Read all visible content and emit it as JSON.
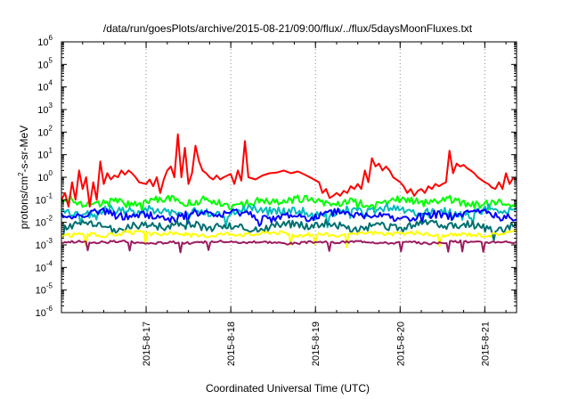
{
  "chart_data": {
    "type": "line",
    "title": "/data/run/goesPlots/archive/2015-08-21/09:00/flux/../flux/5daysMoonFluxes.txt",
    "xlabel": "Coordinated Universal Time (UTC)",
    "ylabel_parts": [
      "protons/cm",
      "2",
      "-s-sr-MeV"
    ],
    "yscale": "log",
    "ylim": [
      1e-06,
      1000000
    ],
    "y_ticks": [
      {
        "base": "10",
        "exp": "-6",
        "value": 1e-06
      },
      {
        "base": "10",
        "exp": "-5",
        "value": 1e-05
      },
      {
        "base": "10",
        "exp": "-4",
        "value": 0.0001
      },
      {
        "base": "10",
        "exp": "-3",
        "value": 0.001
      },
      {
        "base": "10",
        "exp": "-2",
        "value": 0.01
      },
      {
        "base": "10",
        "exp": "-1",
        "value": 0.1
      },
      {
        "base": "10",
        "exp": "0",
        "value": 1
      },
      {
        "base": "10",
        "exp": "1",
        "value": 10
      },
      {
        "base": "10",
        "exp": "2",
        "value": 100
      },
      {
        "base": "10",
        "exp": "3",
        "value": 1000
      },
      {
        "base": "10",
        "exp": "4",
        "value": 10000
      },
      {
        "base": "10",
        "exp": "5",
        "value": 100000
      },
      {
        "base": "10",
        "exp": "6",
        "value": 1000000
      }
    ],
    "xlim": [
      "2015-08-16 00:00",
      "2015-08-21 09:00"
    ],
    "x_ticks": [
      {
        "label": "2015-8-17",
        "value": "2015-08-17 00:00"
      },
      {
        "label": "2015-8-18",
        "value": "2015-08-18 00:00"
      },
      {
        "label": "2015-8-19",
        "value": "2015-08-19 00:00"
      },
      {
        "label": "2015-8-20",
        "value": "2015-08-20 00:00"
      },
      {
        "label": "2015-8-21",
        "value": "2015-08-21 00:00"
      }
    ],
    "grid": "dotted, at major ticks",
    "legend": "none",
    "series": [
      {
        "color": "#ff0000",
        "points": [
          [
            "2015-08-16 00:00",
            0.1
          ],
          [
            "2015-08-16 01:00",
            0.2
          ],
          [
            "2015-08-16 02:00",
            0.05
          ],
          [
            "2015-08-16 03:00",
            0.6
          ],
          [
            "2015-08-16 04:00",
            0.1
          ],
          [
            "2015-08-16 05:00",
            2
          ],
          [
            "2015-08-16 06:00",
            0.3
          ],
          [
            "2015-08-16 07:00",
            1
          ],
          [
            "2015-08-16 08:00",
            0.05
          ],
          [
            "2015-08-16 09:00",
            0.6
          ],
          [
            "2015-08-16 10:00",
            0.1
          ],
          [
            "2015-08-16 11:00",
            5
          ],
          [
            "2015-08-16 12:00",
            0.5
          ],
          [
            "2015-08-16 13:00",
            1.5
          ],
          [
            "2015-08-16 14:00",
            0.8
          ],
          [
            "2015-08-16 15:00",
            1.2
          ],
          [
            "2015-08-16 16:00",
            1
          ],
          [
            "2015-08-16 17:00",
            2
          ],
          [
            "2015-08-16 18:00",
            1.3
          ],
          [
            "2015-08-16 19:00",
            2
          ],
          [
            "2015-08-16 20:00",
            1.5
          ],
          [
            "2015-08-16 21:00",
            1
          ],
          [
            "2015-08-16 22:00",
            0.6
          ],
          [
            "2015-08-17 00:00",
            0.5
          ],
          [
            "2015-08-17 01:00",
            0.8
          ],
          [
            "2015-08-17 02:00",
            0.4
          ],
          [
            "2015-08-17 03:00",
            1
          ],
          [
            "2015-08-17 04:00",
            0.2
          ],
          [
            "2015-08-17 05:00",
            0.8
          ],
          [
            "2015-08-17 06:00",
            2
          ],
          [
            "2015-08-17 07:00",
            3
          ],
          [
            "2015-08-17 08:00",
            1
          ],
          [
            "2015-08-17 09:00",
            80
          ],
          [
            "2015-08-17 10:00",
            1
          ],
          [
            "2015-08-17 11:00",
            20
          ],
          [
            "2015-08-17 12:00",
            0.5
          ],
          [
            "2015-08-17 13:00",
            1.5
          ],
          [
            "2015-08-17 14:00",
            25
          ],
          [
            "2015-08-17 15:00",
            5
          ],
          [
            "2015-08-17 16:00",
            2
          ],
          [
            "2015-08-17 17:00",
            1.5
          ],
          [
            "2015-08-17 18:00",
            1
          ],
          [
            "2015-08-17 19:00",
            0.8
          ],
          [
            "2015-08-17 20:00",
            1.2
          ],
          [
            "2015-08-17 21:00",
            0.8
          ],
          [
            "2015-08-17 22:00",
            1
          ],
          [
            "2015-08-18 00:00",
            1.4
          ],
          [
            "2015-08-18 01:00",
            0.5
          ],
          [
            "2015-08-18 02:00",
            2
          ],
          [
            "2015-08-18 03:00",
            0.7
          ],
          [
            "2015-08-18 04:00",
            40
          ],
          [
            "2015-08-18 05:00",
            1
          ],
          [
            "2015-08-18 07:00",
            0.8
          ],
          [
            "2015-08-18 09:00",
            1.2
          ],
          [
            "2015-08-18 11:00",
            1.5
          ],
          [
            "2015-08-18 13:00",
            1.6
          ],
          [
            "2015-08-18 15:00",
            2
          ],
          [
            "2015-08-18 17:00",
            1.5
          ],
          [
            "2015-08-18 19:00",
            1.8
          ],
          [
            "2015-08-18 21:00",
            1.3
          ],
          [
            "2015-08-18 23:00",
            0.9
          ],
          [
            "2015-08-19 01:00",
            0.6
          ],
          [
            "2015-08-19 02:00",
            0.2
          ],
          [
            "2015-08-19 03:00",
            0.3
          ],
          [
            "2015-08-19 04:00",
            0.12
          ],
          [
            "2015-08-19 05:00",
            0.15
          ],
          [
            "2015-08-19 06:00",
            0.2
          ],
          [
            "2015-08-19 07:00",
            0.15
          ],
          [
            "2015-08-19 08:00",
            0.25
          ],
          [
            "2015-08-19 09:00",
            0.2
          ],
          [
            "2015-08-19 10:00",
            0.4
          ],
          [
            "2015-08-19 11:00",
            0.3
          ],
          [
            "2015-08-19 12:00",
            0.5
          ],
          [
            "2015-08-19 13:00",
            0.3
          ],
          [
            "2015-08-19 14:00",
            2
          ],
          [
            "2015-08-19 15:00",
            0.6
          ],
          [
            "2015-08-19 16:00",
            7
          ],
          [
            "2015-08-19 17:00",
            3
          ],
          [
            "2015-08-19 18:00",
            4
          ],
          [
            "2015-08-19 19:00",
            2
          ],
          [
            "2015-08-19 20:00",
            3
          ],
          [
            "2015-08-19 21:00",
            2
          ],
          [
            "2015-08-19 22:00",
            1
          ],
          [
            "2015-08-20 00:00",
            0.6
          ],
          [
            "2015-08-20 01:00",
            0.4
          ],
          [
            "2015-08-20 02:00",
            0.2
          ],
          [
            "2015-08-20 03:00",
            0.3
          ],
          [
            "2015-08-20 04:00",
            0.15
          ],
          [
            "2015-08-20 05:00",
            0.25
          ],
          [
            "2015-08-20 06:00",
            0.3
          ],
          [
            "2015-08-20 07:00",
            0.2
          ],
          [
            "2015-08-20 08:00",
            0.4
          ],
          [
            "2015-08-20 09:00",
            0.3
          ],
          [
            "2015-08-20 10:00",
            0.5
          ],
          [
            "2015-08-20 11:00",
            0.4
          ],
          [
            "2015-08-20 12:00",
            0.5
          ],
          [
            "2015-08-20 13:00",
            0.6
          ],
          [
            "2015-08-20 14:00",
            15
          ],
          [
            "2015-08-20 15:00",
            1.5
          ],
          [
            "2015-08-20 16:00",
            4
          ],
          [
            "2015-08-20 17:00",
            3
          ],
          [
            "2015-08-20 18:00",
            3.5
          ],
          [
            "2015-08-20 19:00",
            2.5
          ],
          [
            "2015-08-20 20:00",
            2
          ],
          [
            "2015-08-20 21:00",
            1.5
          ],
          [
            "2015-08-20 22:00",
            1
          ],
          [
            "2015-08-21 00:00",
            0.6
          ],
          [
            "2015-08-21 01:00",
            0.5
          ],
          [
            "2015-08-21 02:00",
            0.35
          ],
          [
            "2015-08-21 03:00",
            0.3
          ],
          [
            "2015-08-21 04:00",
            0.6
          ],
          [
            "2015-08-21 05:00",
            0.3
          ],
          [
            "2015-08-21 06:00",
            1.5
          ],
          [
            "2015-08-21 07:00",
            0.5
          ],
          [
            "2015-08-21 08:00",
            0.9
          ],
          [
            "2015-08-21 09:00",
            0.8
          ]
        ]
      },
      {
        "color": "#00ff00",
        "base": 0.08,
        "amp": 0.35,
        "phase": 1,
        "dips": [
          0.93,
          0.2
        ]
      },
      {
        "color": "#00bbbb",
        "base": 0.03,
        "amp": 0.4,
        "phase": 2,
        "dips": [
          0.93,
          0.4
        ]
      },
      {
        "color": "#0000ff",
        "base": 0.02,
        "amp": 0.35,
        "phase": 3,
        "dips": [
          0.93,
          0.3
        ]
      },
      {
        "color": "#006f6f",
        "base": 0.007,
        "amp": 0.35,
        "phase": 4,
        "dips": [
          0.93,
          0.3
        ]
      },
      {
        "color": "#ffff00",
        "base": 0.003,
        "amp": 0.18,
        "phase": 5,
        "dips": [
          0.93,
          0.45
        ]
      },
      {
        "color": "#9b1c5f",
        "base": 0.0013,
        "amp": 0.1,
        "phase": 6,
        "dips": [
          0.93,
          0.4
        ]
      }
    ]
  }
}
